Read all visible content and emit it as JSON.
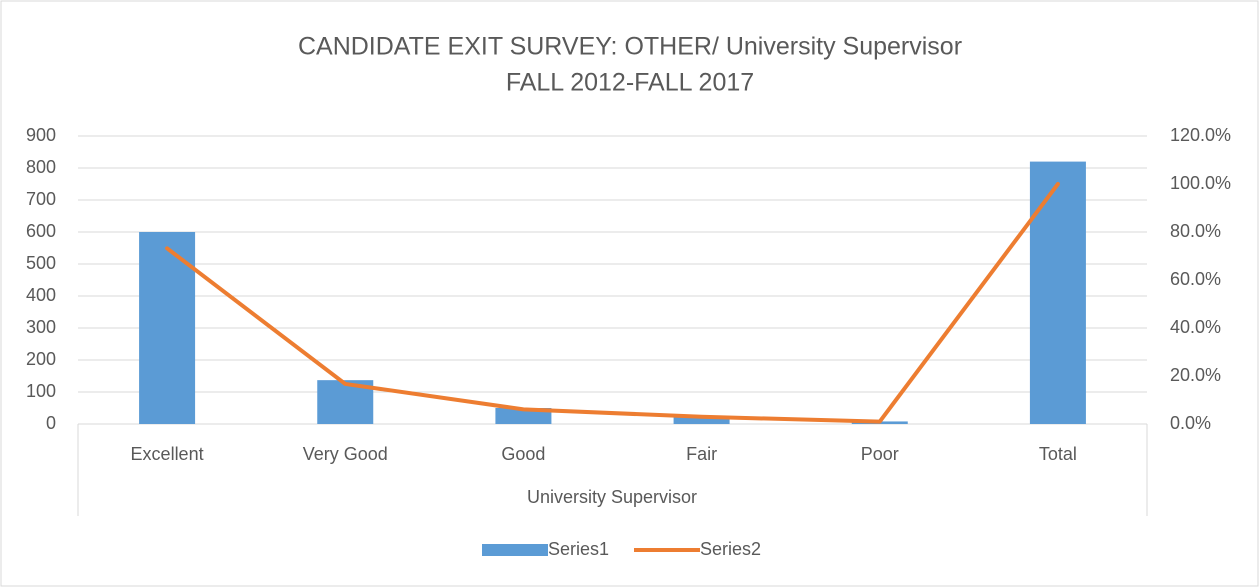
{
  "chart_data": {
    "type": "bar-line",
    "title": "CANDIDATE EXIT SURVEY: OTHER/ University Supervisor",
    "subtitle": "FALL 2012-FALL 2017",
    "categories": [
      "Excellent",
      "Very Good",
      "Good",
      "Fair",
      "Poor",
      "Total"
    ],
    "xlabel": "University Supervisor",
    "series": [
      {
        "name": "Series1",
        "color": "#5b9bd5",
        "type": "bar",
        "values": [
          600,
          137,
          50,
          25,
          8,
          820
        ]
      },
      {
        "name": "Series2",
        "color": "#ed7d31",
        "type": "line",
        "axis": "y2",
        "values": [
          73.2,
          16.7,
          6.1,
          3.0,
          1.0,
          100
        ]
      }
    ],
    "ylim": [
      0,
      900
    ],
    "yticks": [
      0,
      100,
      200,
      300,
      400,
      500,
      600,
      700,
      800,
      900
    ],
    "y2lim": [
      0,
      120
    ],
    "y2ticks": [
      {
        "value": 0,
        "label": "0.0%"
      },
      {
        "value": 20,
        "label": "20.0%"
      },
      {
        "value": 40,
        "label": "40.0%"
      },
      {
        "value": 60,
        "label": "60.0%"
      },
      {
        "value": 80,
        "label": "80.0%"
      },
      {
        "value": 100,
        "label": "100.0%"
      },
      {
        "value": 120,
        "label": "120.0%"
      }
    ],
    "grid": true,
    "legend": "bottom"
  }
}
